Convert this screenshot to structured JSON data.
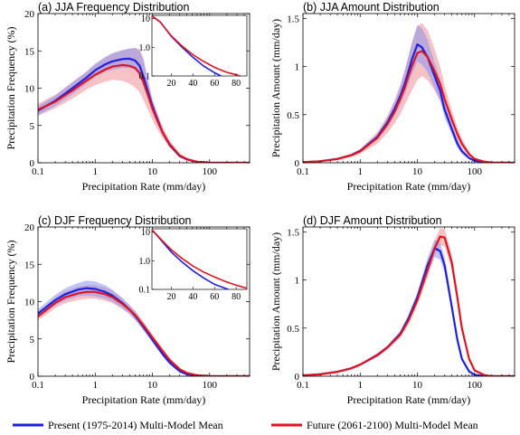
{
  "colors": {
    "present": "#1f1fe0",
    "future": "#e0141e",
    "present_band": "#8c96ee",
    "future_band": "#f09aa0"
  },
  "legend": {
    "present": "Present (1975-2014) Multi-Model Mean",
    "future": "Future (2061-2100) Multi-Model Mean"
  },
  "chart_data": [
    {
      "panel": "a",
      "type": "line",
      "title": "(a) JJA Frequency Distribution",
      "xlabel": "Precipitation Rate (mm/day)",
      "ylabel": "Precipitation Frequency (%)",
      "xscale": "log",
      "xlim": [
        0.1,
        500
      ],
      "ylim": [
        0,
        20
      ],
      "xticks": [
        "0.1",
        "1",
        "10",
        "100"
      ],
      "yticks": [
        "0",
        "5",
        "10",
        "15",
        "20"
      ],
      "series": [
        {
          "key": "present",
          "x": [
            0.1,
            0.2,
            0.4,
            0.7,
            1,
            1.5,
            2,
            3,
            4,
            5,
            6,
            7,
            8,
            10,
            12,
            15,
            20,
            30,
            40,
            60,
            100,
            200,
            500
          ],
          "y": [
            7.0,
            8.3,
            10.0,
            11.4,
            12.4,
            13.2,
            13.6,
            13.9,
            13.95,
            13.7,
            13.0,
            11.5,
            10.0,
            7.6,
            6.0,
            4.1,
            2.4,
            0.9,
            0.45,
            0.12,
            0.02,
            0,
            0
          ],
          "lower": [
            6.4,
            7.6,
            9.2,
            10.6,
            11.5,
            12.2,
            12.5,
            12.7,
            12.7,
            12.4,
            11.6,
            10.2,
            8.9,
            6.8,
            5.4,
            3.7,
            2.1,
            0.8,
            0.38,
            0.1,
            0.02,
            0,
            0
          ],
          "upper": [
            7.6,
            9.0,
            10.8,
            12.2,
            13.3,
            14.2,
            14.7,
            15.1,
            15.3,
            15.4,
            15.0,
            13.8,
            11.6,
            8.4,
            6.6,
            4.5,
            2.7,
            1.05,
            0.5,
            0.14,
            0.03,
            0,
            0
          ]
        },
        {
          "key": "future",
          "x": [
            0.1,
            0.2,
            0.4,
            0.7,
            1,
            1.5,
            2,
            3,
            4,
            5,
            6,
            7,
            8,
            10,
            12,
            15,
            20,
            30,
            40,
            60,
            100,
            200,
            500
          ],
          "y": [
            7.1,
            8.2,
            9.7,
            11.0,
            11.8,
            12.5,
            12.9,
            13.1,
            13.0,
            12.7,
            12.0,
            10.8,
            9.5,
            7.3,
            5.8,
            4.1,
            2.5,
            1.0,
            0.5,
            0.15,
            0.03,
            0,
            0
          ],
          "lower": [
            6.3,
            7.3,
            8.6,
            9.8,
            10.4,
            10.9,
            11.1,
            11.0,
            10.6,
            10.1,
            9.4,
            8.4,
            7.4,
            5.8,
            4.6,
            3.3,
            2.0,
            0.8,
            0.4,
            0.12,
            0.02,
            0,
            0
          ],
          "upper": [
            7.9,
            9.1,
            10.8,
            12.2,
            13.2,
            14.1,
            14.6,
            15.1,
            15.3,
            15.4,
            15.2,
            14.0,
            11.8,
            8.6,
            6.9,
            4.9,
            3.0,
            1.2,
            0.6,
            0.18,
            0.04,
            0,
            0
          ]
        }
      ],
      "inset": {
        "xscale": "linear",
        "yscale": "log",
        "xlim": [
          2,
          90
        ],
        "ylim": [
          0.1,
          13
        ],
        "xticks": [
          "20",
          "40",
          "60",
          "80"
        ],
        "yticks": [
          "10",
          "1.0",
          "0.1"
        ],
        "series": [
          {
            "key": "present",
            "x": [
              2,
              10,
              20,
              30,
              40,
              50,
              60,
              66
            ],
            "y": [
              12.5,
              7.5,
              2.4,
              1.0,
              0.45,
              0.22,
              0.13,
              0.1
            ]
          },
          {
            "key": "future",
            "x": [
              2,
              10,
              20,
              30,
              40,
              50,
              60,
              70,
              80,
              84
            ],
            "y": [
              12.5,
              7.4,
              2.5,
              1.1,
              0.55,
              0.32,
              0.2,
              0.14,
              0.11,
              0.1
            ]
          }
        ]
      }
    },
    {
      "panel": "b",
      "type": "line",
      "title": "(b) JJA Amount Distribution",
      "xlabel": "Precipitation Rate (mm/day)",
      "ylabel": "Precipitation Amount (mm/day)",
      "xscale": "log",
      "xlim": [
        0.1,
        500
      ],
      "ylim": [
        0,
        1.55
      ],
      "xticks": [
        "0.1",
        "1",
        "10",
        "100"
      ],
      "yticks": [
        "0",
        "0.5",
        "1",
        "1.5"
      ],
      "series": [
        {
          "key": "present",
          "x": [
            0.1,
            0.2,
            0.4,
            0.7,
            1,
            2,
            3,
            4,
            5,
            6,
            7,
            8,
            10,
            12,
            15,
            20,
            25,
            30,
            40,
            50,
            60,
            80,
            100,
            150,
            200,
            500
          ],
          "y": [
            0.007,
            0.016,
            0.04,
            0.08,
            0.124,
            0.27,
            0.42,
            0.56,
            0.69,
            0.82,
            0.95,
            1.07,
            1.23,
            1.2,
            1.1,
            0.9,
            0.75,
            0.55,
            0.35,
            0.2,
            0.12,
            0.05,
            0.02,
            0.005,
            0,
            0
          ],
          "lower": [
            0.006,
            0.014,
            0.035,
            0.072,
            0.11,
            0.24,
            0.37,
            0.49,
            0.6,
            0.71,
            0.82,
            0.92,
            1.05,
            1.02,
            0.94,
            0.77,
            0.64,
            0.47,
            0.29,
            0.16,
            0.09,
            0.04,
            0.015,
            0.004,
            0,
            0
          ],
          "upper": [
            0.008,
            0.018,
            0.045,
            0.088,
            0.138,
            0.3,
            0.47,
            0.63,
            0.79,
            0.95,
            1.1,
            1.24,
            1.43,
            1.4,
            1.28,
            1.04,
            0.86,
            0.63,
            0.41,
            0.24,
            0.15,
            0.06,
            0.025,
            0.006,
            0,
            0
          ]
        },
        {
          "key": "future",
          "x": [
            0.1,
            0.2,
            0.4,
            0.7,
            1,
            2,
            3,
            4,
            5,
            6,
            7,
            8,
            10,
            12,
            15,
            20,
            25,
            30,
            40,
            50,
            60,
            80,
            100,
            150,
            200,
            500
          ],
          "y": [
            0.007,
            0.016,
            0.039,
            0.078,
            0.118,
            0.26,
            0.4,
            0.53,
            0.66,
            0.78,
            0.9,
            1.0,
            1.14,
            1.16,
            1.1,
            0.95,
            0.82,
            0.66,
            0.45,
            0.3,
            0.2,
            0.09,
            0.04,
            0.01,
            0.003,
            0
          ],
          "lower": [
            0.005,
            0.012,
            0.03,
            0.06,
            0.092,
            0.2,
            0.31,
            0.41,
            0.5,
            0.6,
            0.68,
            0.75,
            0.86,
            0.9,
            0.86,
            0.75,
            0.65,
            0.52,
            0.35,
            0.23,
            0.15,
            0.07,
            0.03,
            0.008,
            0.002,
            0
          ],
          "upper": [
            0.009,
            0.02,
            0.048,
            0.096,
            0.144,
            0.32,
            0.49,
            0.65,
            0.81,
            0.96,
            1.11,
            1.25,
            1.42,
            1.45,
            1.38,
            1.18,
            1.0,
            0.8,
            0.55,
            0.37,
            0.25,
            0.11,
            0.05,
            0.012,
            0.004,
            0
          ]
        }
      ]
    },
    {
      "panel": "c",
      "type": "line",
      "title": "(c) DJF Frequency Distribution",
      "xlabel": "Precipitation Rate (mm/day)",
      "ylabel": "Precipitation Frequency (%)",
      "xscale": "log",
      "xlim": [
        0.1,
        500
      ],
      "ylim": [
        0,
        20
      ],
      "xticks": [
        "0.1",
        "1",
        "10",
        "100"
      ],
      "yticks": [
        "0",
        "5",
        "10",
        "15",
        "20"
      ],
      "series": [
        {
          "key": "present",
          "x": [
            0.1,
            0.2,
            0.3,
            0.5,
            0.7,
            1,
            1.5,
            2,
            3,
            4,
            5,
            7,
            10,
            15,
            20,
            30,
            40,
            60,
            100,
            200,
            500
          ],
          "y": [
            8.4,
            10.2,
            11.0,
            11.6,
            11.8,
            11.7,
            11.3,
            10.8,
            9.8,
            8.9,
            8.1,
            6.6,
            4.9,
            3.0,
            1.8,
            0.65,
            0.25,
            0.05,
            0,
            0,
            0
          ],
          "lower": [
            7.9,
            9.5,
            10.2,
            10.7,
            10.8,
            10.7,
            10.4,
            10.0,
            9.1,
            8.3,
            7.5,
            6.1,
            4.5,
            2.7,
            1.6,
            0.55,
            0.2,
            0.04,
            0,
            0,
            0
          ],
          "upper": [
            9.0,
            10.9,
            11.8,
            12.5,
            12.8,
            12.7,
            12.2,
            11.6,
            10.5,
            9.5,
            8.7,
            7.1,
            5.3,
            3.3,
            2.0,
            0.75,
            0.3,
            0.06,
            0,
            0,
            0
          ]
        },
        {
          "key": "future",
          "x": [
            0.1,
            0.2,
            0.3,
            0.5,
            0.7,
            1,
            1.5,
            2,
            3,
            4,
            5,
            7,
            10,
            15,
            20,
            30,
            40,
            60,
            100,
            200,
            500
          ],
          "y": [
            8.0,
            9.8,
            10.6,
            11.1,
            11.3,
            11.3,
            11.0,
            10.6,
            9.7,
            8.9,
            8.2,
            6.8,
            5.2,
            3.4,
            2.2,
            0.95,
            0.45,
            0.12,
            0.02,
            0,
            0
          ],
          "lower": [
            7.5,
            9.1,
            9.8,
            10.2,
            10.4,
            10.4,
            10.1,
            9.8,
            9.0,
            8.3,
            7.6,
            6.3,
            4.8,
            3.1,
            2.0,
            0.85,
            0.4,
            0.1,
            0.015,
            0,
            0
          ],
          "upper": [
            8.5,
            10.5,
            11.4,
            12.0,
            12.2,
            12.2,
            11.9,
            11.4,
            10.4,
            9.5,
            8.8,
            7.3,
            5.6,
            3.7,
            2.4,
            1.05,
            0.5,
            0.14,
            0.025,
            0,
            0
          ]
        }
      ],
      "inset": {
        "xscale": "linear",
        "yscale": "log",
        "xlim": [
          2,
          90
        ],
        "ylim": [
          0.1,
          13
        ],
        "xticks": [
          "20",
          "40",
          "60",
          "80"
        ],
        "yticks": [
          "10",
          "1.0",
          "0.1"
        ],
        "series": [
          {
            "key": "present",
            "x": [
              2,
              10,
              20,
              30,
              40,
              50,
              60,
              70,
              73
            ],
            "y": [
              12.0,
              5.5,
              2.0,
              0.9,
              0.45,
              0.25,
              0.15,
              0.11,
              0.1
            ]
          },
          {
            "key": "future",
            "x": [
              2,
              10,
              20,
              30,
              40,
              50,
              60,
              70,
              80,
              90
            ],
            "y": [
              12.0,
              5.8,
              2.4,
              1.2,
              0.65,
              0.4,
              0.27,
              0.19,
              0.14,
              0.11
            ]
          }
        ]
      }
    },
    {
      "panel": "d",
      "type": "line",
      "title": "(d) DJF Amount Distribution",
      "xlabel": "Precipitation Rate (mm/day)",
      "ylabel": "Precipitation Amount (mm/day)",
      "xscale": "log",
      "xlim": [
        0.1,
        500
      ],
      "ylim": [
        0,
        1.55
      ],
      "xticks": [
        "0.1",
        "1",
        "10",
        "100"
      ],
      "yticks": [
        "0",
        "0.5",
        "1",
        "1.5"
      ],
      "series": [
        {
          "key": "present",
          "x": [
            0.1,
            0.2,
            0.4,
            0.7,
            1,
            2,
            3,
            5,
            7,
            10,
            15,
            20,
            25,
            30,
            40,
            50,
            60,
            80,
            100,
            150,
            200,
            500
          ],
          "y": [
            0.008,
            0.02,
            0.046,
            0.083,
            0.12,
            0.22,
            0.3,
            0.44,
            0.6,
            0.82,
            1.15,
            1.33,
            1.3,
            1.15,
            0.72,
            0.38,
            0.18,
            0.05,
            0.015,
            0,
            0,
            0
          ],
          "lower": [
            0.007,
            0.018,
            0.042,
            0.076,
            0.11,
            0.2,
            0.28,
            0.41,
            0.56,
            0.77,
            1.07,
            1.24,
            1.21,
            1.07,
            0.67,
            0.35,
            0.16,
            0.045,
            0.013,
            0,
            0,
            0
          ],
          "upper": [
            0.009,
            0.022,
            0.05,
            0.09,
            0.13,
            0.24,
            0.32,
            0.47,
            0.64,
            0.87,
            1.23,
            1.42,
            1.39,
            1.23,
            0.77,
            0.41,
            0.2,
            0.055,
            0.017,
            0,
            0,
            0
          ]
        },
        {
          "key": "future",
          "x": [
            0.1,
            0.2,
            0.4,
            0.7,
            1,
            2,
            3,
            5,
            7,
            10,
            15,
            20,
            25,
            30,
            40,
            50,
            60,
            80,
            100,
            150,
            200,
            500
          ],
          "y": [
            0.008,
            0.02,
            0.046,
            0.083,
            0.12,
            0.22,
            0.3,
            0.43,
            0.58,
            0.79,
            1.1,
            1.33,
            1.45,
            1.44,
            1.18,
            0.82,
            0.5,
            0.18,
            0.06,
            0.01,
            0,
            0
          ],
          "lower": [
            0.007,
            0.018,
            0.042,
            0.076,
            0.11,
            0.2,
            0.28,
            0.4,
            0.54,
            0.74,
            1.03,
            1.25,
            1.36,
            1.35,
            1.1,
            0.76,
            0.46,
            0.16,
            0.055,
            0.009,
            0,
            0
          ],
          "upper": [
            0.009,
            0.022,
            0.05,
            0.09,
            0.13,
            0.24,
            0.32,
            0.46,
            0.62,
            0.84,
            1.17,
            1.41,
            1.54,
            1.53,
            1.26,
            0.88,
            0.54,
            0.2,
            0.065,
            0.011,
            0,
            0
          ]
        }
      ]
    }
  ]
}
